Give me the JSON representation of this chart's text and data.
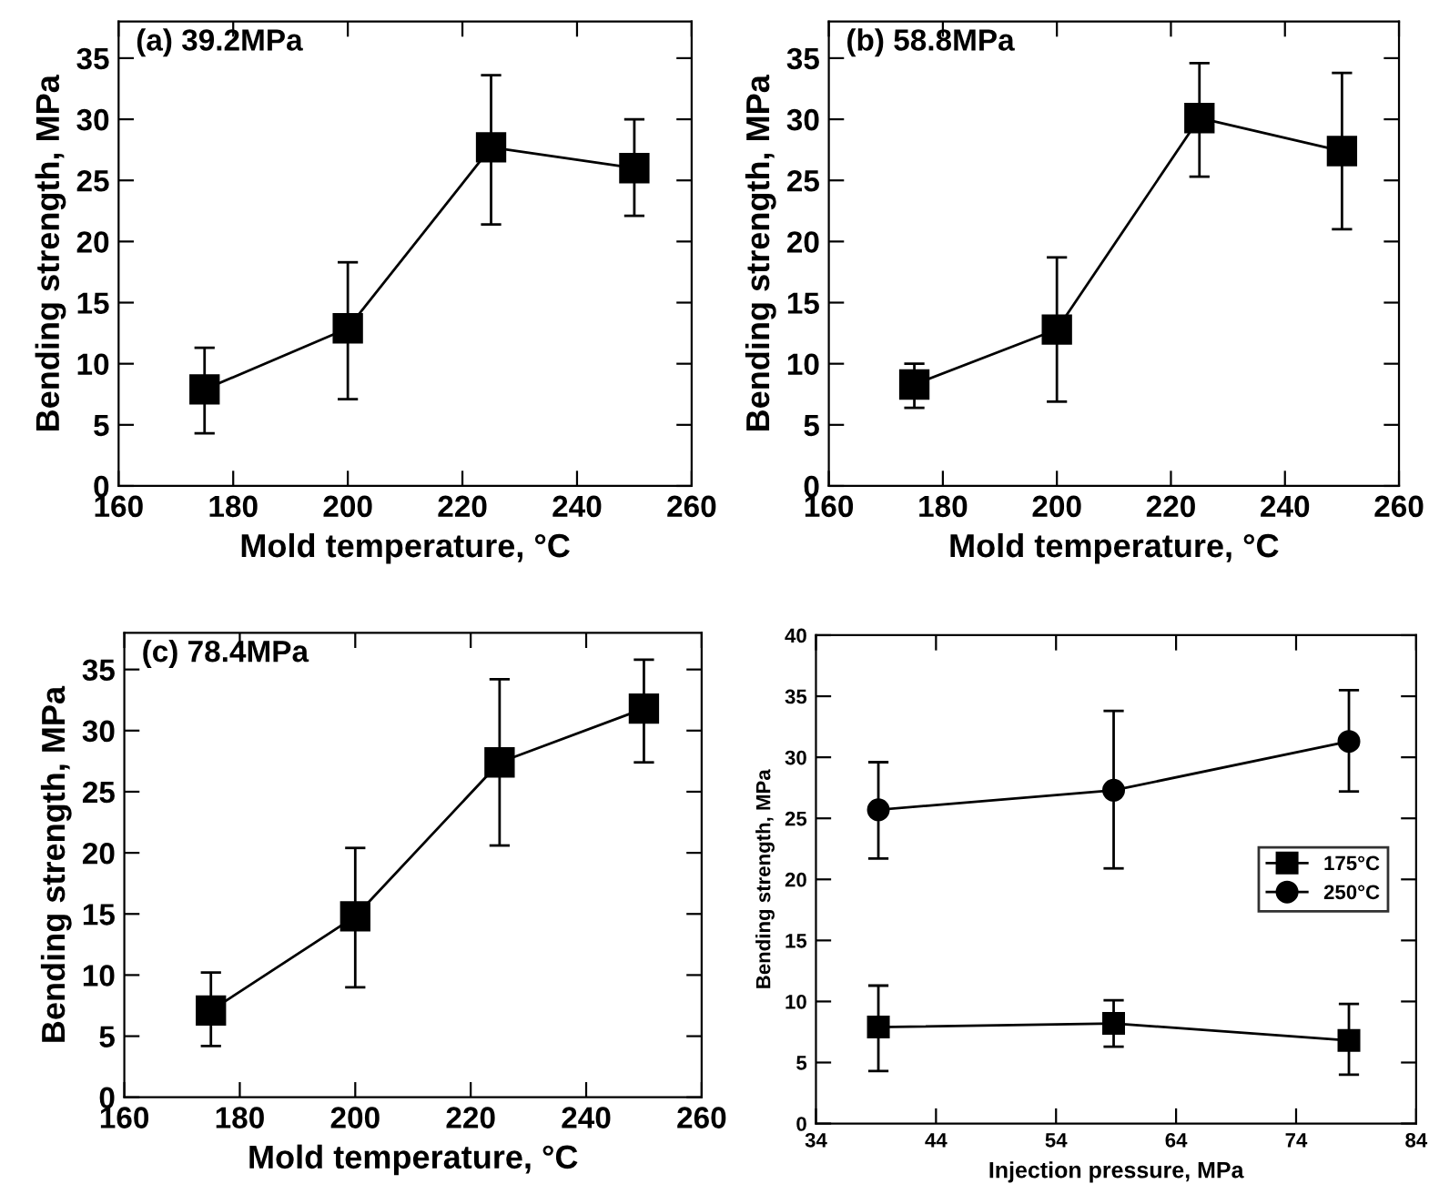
{
  "chart_data": [
    {
      "type": "line",
      "title": "(a) 39.2MPa",
      "xlabel": "Mold temperature, °C",
      "ylabel": "Bending strength, MPa",
      "x": [
        175,
        200,
        225,
        250
      ],
      "xlim": [
        160,
        260
      ],
      "xticks": [
        160,
        180,
        200,
        220,
        240,
        260
      ],
      "ylim": [
        0,
        38
      ],
      "yticks": [
        0,
        5,
        10,
        15,
        20,
        25,
        30,
        35
      ],
      "grid": false,
      "legend": false,
      "line_style": "solid",
      "series": [
        {
          "color": "#000000",
          "marker": "square",
          "values": [
            7.9,
            12.9,
            27.7,
            26.0
          ],
          "errors": [
            [
              4.3,
              11.3
            ],
            [
              7.1,
              18.3
            ],
            [
              21.4,
              33.6
            ],
            [
              22.1,
              30.0
            ]
          ]
        }
      ]
    },
    {
      "type": "line",
      "title": "(b) 58.8MPa",
      "xlabel": "Mold temperature, °C",
      "ylabel": "Bending strength, MPa",
      "x": [
        175,
        200,
        225,
        250
      ],
      "xlim": [
        160,
        260
      ],
      "xticks": [
        160,
        180,
        200,
        220,
        240,
        260
      ],
      "ylim": [
        0,
        38
      ],
      "yticks": [
        0,
        5,
        10,
        15,
        20,
        25,
        30,
        35
      ],
      "grid": false,
      "legend": false,
      "line_style": "solid",
      "series": [
        {
          "color": "#000000",
          "marker": "square",
          "values": [
            8.3,
            12.8,
            30.1,
            27.4
          ],
          "errors": [
            [
              6.4,
              10.0
            ],
            [
              6.9,
              18.7
            ],
            [
              25.3,
              34.6
            ],
            [
              21.0,
              33.8
            ]
          ]
        }
      ]
    },
    {
      "type": "line",
      "title": "(c) 78.4MPa",
      "xlabel": "Mold temperature, °C",
      "ylabel": "Bending strength, MPa",
      "x": [
        175,
        200,
        225,
        250
      ],
      "xlim": [
        160,
        260
      ],
      "xticks": [
        160,
        180,
        200,
        220,
        240,
        260
      ],
      "ylim": [
        0,
        38
      ],
      "yticks": [
        0,
        5,
        10,
        15,
        20,
        25,
        30,
        35
      ],
      "grid": false,
      "legend": false,
      "line_style": "solid",
      "series": [
        {
          "color": "#000000",
          "marker": "square",
          "values": [
            7.1,
            14.8,
            27.4,
            31.8
          ],
          "errors": [
            [
              4.2,
              10.2
            ],
            [
              9.0,
              20.4
            ],
            [
              20.6,
              34.2
            ],
            [
              27.4,
              35.8
            ]
          ]
        }
      ]
    },
    {
      "type": "line",
      "xlabel": "Injection pressure, MPa",
      "ylabel": "Bending strength, MPa",
      "x": [
        39.2,
        58.8,
        78.4
      ],
      "xlim": [
        34,
        84
      ],
      "xticks": [
        34,
        44,
        54,
        64,
        74,
        84
      ],
      "ylim": [
        0,
        40
      ],
      "yticks": [
        0,
        5,
        10,
        15,
        20,
        25,
        30,
        35,
        40
      ],
      "grid": false,
      "legend": "right",
      "line_style": "solid",
      "series": [
        {
          "name": "175°C",
          "color": "#000000",
          "marker": "square",
          "values": [
            7.9,
            8.2,
            6.8
          ],
          "errors": [
            [
              4.3,
              11.3
            ],
            [
              6.3,
              10.1
            ],
            [
              4.0,
              9.8
            ]
          ]
        },
        {
          "name": "250°C",
          "color": "#000000",
          "marker": "circle",
          "values": [
            25.7,
            27.3,
            31.3
          ],
          "errors": [
            [
              21.7,
              29.6
            ],
            [
              20.9,
              33.8
            ],
            [
              27.2,
              35.5
            ]
          ]
        }
      ]
    }
  ]
}
